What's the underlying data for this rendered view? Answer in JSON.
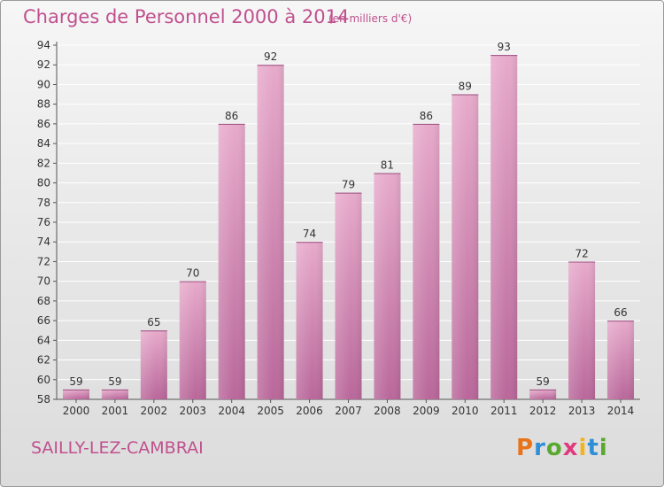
{
  "header": {
    "title": "Charges de Personnel 2000 à 2014",
    "subtitle": "(en milliers d'€)"
  },
  "footer": {
    "location": "SAILLY-LEZ-CAMBRAI",
    "logo_text": "Proxiti",
    "logo_colors": [
      "#e8731a",
      "#2f8fd6",
      "#5aa92f",
      "#e03a7d",
      "#f2b31d",
      "#2f8fd6",
      "#5aa92f"
    ]
  },
  "chart_data": {
    "type": "bar",
    "title": "Charges de Personnel 2000 à 2014",
    "subtitle": "(en milliers d'€)",
    "xlabel": "",
    "ylabel": "",
    "categories": [
      "2000",
      "2001",
      "2002",
      "2003",
      "2004",
      "2005",
      "2006",
      "2007",
      "2008",
      "2009",
      "2010",
      "2011",
      "2012",
      "2013",
      "2014"
    ],
    "values": [
      59,
      59,
      65,
      70,
      86,
      92,
      74,
      79,
      81,
      86,
      89,
      93,
      59,
      72,
      66
    ],
    "ylim": [
      58,
      94
    ],
    "yticks": [
      58,
      60,
      62,
      64,
      66,
      68,
      70,
      72,
      74,
      76,
      78,
      80,
      82,
      84,
      86,
      88,
      90,
      92,
      94
    ],
    "grid": true,
    "bar_color": "#d98bb5",
    "legend": "none"
  }
}
